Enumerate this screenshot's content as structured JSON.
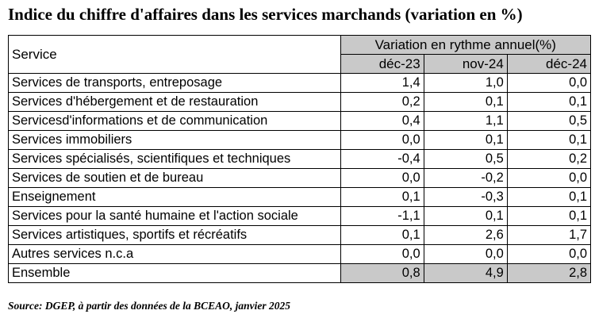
{
  "title": "Indice du chiffre d'affaires dans les services marchands (variation en %)",
  "table": {
    "service_header": "Service",
    "group_header": "Variation en rythme annuel(%)",
    "periods": [
      "déc-23",
      "nov-24",
      "déc-24"
    ],
    "rows": [
      {
        "service": "Services de transports, entreposage",
        "values": [
          "1,4",
          "1,0",
          "0,0"
        ]
      },
      {
        "service": "Services d'hébergement et de restauration",
        "values": [
          "0,2",
          "0,1",
          "0,1"
        ]
      },
      {
        "service": "Servicesd'informations et de communication",
        "values": [
          "0,4",
          "1,1",
          "0,5"
        ]
      },
      {
        "service": "Services immobiliers",
        "values": [
          "0,0",
          "0,1",
          "0,1"
        ]
      },
      {
        "service": "Services spécialisés, scientifiques et techniques",
        "values": [
          "-0,4",
          "0,5",
          "0,2"
        ]
      },
      {
        "service": "Services de soutien et de bureau",
        "values": [
          "0,0",
          "-0,2",
          "0,0"
        ]
      },
      {
        "service": "Enseignement",
        "values": [
          "0,1",
          "-0,3",
          "0,1"
        ]
      },
      {
        "service": "Services pour la santé humaine et l'action sociale",
        "values": [
          "-1,1",
          "0,1",
          "0,1"
        ]
      },
      {
        "service": "Services artistiques, sportifs et récréatifs",
        "values": [
          "0,1",
          "2,6",
          "1,7"
        ]
      },
      {
        "service": "Autres services n.c.a",
        "values": [
          "0,0",
          "0,0",
          "0,0"
        ]
      }
    ],
    "total": {
      "service": "Ensemble",
      "values": [
        "0,8",
        "4,9",
        "2,8"
      ]
    }
  },
  "source": "Source: DGEP, à partir des données de la BCEAO, janvier 2025",
  "colors": {
    "header_fill": "#c9c9c9",
    "border": "#000000"
  }
}
